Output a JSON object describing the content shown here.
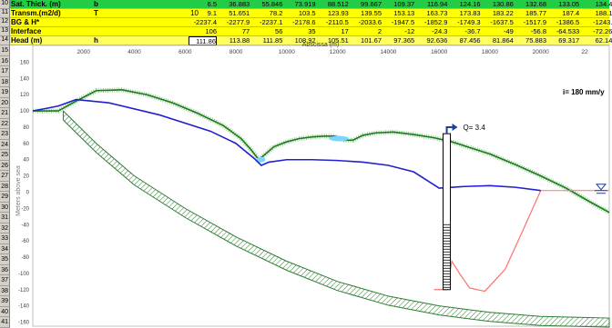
{
  "table": {
    "rows": [
      {
        "row_num": "10",
        "label": "Sat. Thick. (m)",
        "unit": "b",
        "param": "",
        "cells": [
          "6.5",
          "36.883",
          "55.846",
          "73.919",
          "88.512",
          "99.667",
          "109.37",
          "116.94",
          "124.16",
          "130.86",
          "132.68",
          "133.05",
          "134.4"
        ]
      },
      {
        "row_num": "11",
        "label": "Transm.(m2/d)",
        "unit": "T",
        "param": "10",
        "cells": [
          "9.1",
          "51.651",
          "78.2",
          "103.5",
          "123.93",
          "139.55",
          "153.13",
          "163.73",
          "173.83",
          "183.22",
          "185.77",
          "187.4",
          "188.1"
        ]
      },
      {
        "row_num": "12",
        "label": "BG & H*",
        "unit": "",
        "param": "",
        "cells": [
          "-2237.4",
          "-2277.9",
          "-2237.1",
          "-2178.6",
          "-2110.5",
          "-2033.6",
          "-1947.5",
          "-1852.9",
          "-1749.3",
          "-1637.5",
          "-1517.9",
          "-1386.5",
          "-1243."
        ]
      },
      {
        "row_num": "13",
        "label": "Interface",
        "unit": "",
        "param": "",
        "cells": [
          "106",
          "77",
          "56",
          "35",
          "17",
          "2",
          "-12",
          "-24.3",
          "-36.7",
          "-49",
          "-56.8",
          "-64.533",
          "-72.26"
        ]
      },
      {
        "row_num": "14",
        "label": "Head (m)",
        "unit": "h",
        "param": "",
        "cells": [
          "111.86",
          "113.88",
          "111.85",
          "108.92",
          "105.51",
          "101.67",
          "97.365",
          "92.636",
          "87.456",
          "81.864",
          "75.883",
          "69.317",
          "62.14"
        ]
      }
    ],
    "selected_cell": "111.86"
  },
  "plot_row_numbers": [
    "15",
    "16",
    "17",
    "18",
    "19",
    "20",
    "21",
    "22",
    "23",
    "24",
    "25",
    "26",
    "27",
    "28",
    "29",
    "30",
    "31",
    "32",
    "33",
    "34",
    "35",
    "36",
    "37",
    "38",
    "39",
    "40",
    "41"
  ],
  "chart_data": {
    "type": "line",
    "title": "",
    "xlabel": "Abscissa (m)",
    "ylabel": "Meters above sea",
    "x_ticks": [
      2000,
      4000,
      6000,
      8000,
      10000,
      12000,
      14000,
      16000,
      18000,
      20000,
      22
    ],
    "y_ticks": [
      160,
      140,
      120,
      100,
      80,
      60,
      40,
      20,
      0,
      -20,
      -40,
      -60,
      -80,
      -100,
      -120,
      -140,
      -160
    ],
    "ylim": [
      -165,
      165
    ],
    "xlim": [
      0,
      22700
    ],
    "annotations": {
      "recharge": "i= 180 mm/y",
      "pumping": "Q= 3.4"
    },
    "series": [
      {
        "color": "#1f7a1f",
        "x": [
          0,
          1000,
          1700,
          2500,
          3500,
          4500,
          5500,
          6500,
          7500,
          8200,
          8600,
          8900,
          9200,
          9500,
          10000,
          10500,
          11000,
          11500,
          11900,
          12200,
          12600,
          13000,
          13500,
          14200,
          15000,
          15800,
          16500,
          17200,
          18000,
          19000,
          20000,
          21000,
          22000,
          22700
        ],
        "y": [
          100,
          100,
          112,
          125,
          126,
          120,
          110,
          97,
          82,
          66,
          52,
          40,
          48,
          56,
          62,
          66,
          68,
          69,
          69,
          64,
          64,
          70,
          73,
          74,
          71,
          67,
          62,
          55,
          47,
          34,
          20,
          5,
          -13,
          -25
        ]
      },
      {
        "color": "#2020d0",
        "x": [
          0,
          1000,
          1700,
          3000,
          5000,
          7000,
          8000,
          8700,
          9000,
          9300,
          10000,
          11000,
          12000,
          13000,
          14000,
          15000,
          16000,
          17000,
          18000,
          19000,
          20000
        ],
        "y": [
          100,
          106,
          114,
          110,
          95,
          75,
          60,
          42,
          33,
          37,
          40,
          40,
          39,
          37,
          33,
          25,
          5,
          7,
          8,
          6,
          2
        ]
      },
      {
        "color": "#ff7070",
        "x": [
          15800,
          16300,
          16500,
          16800,
          17200,
          17800,
          18600,
          19400,
          20000
        ],
        "y": [
          -120,
          -120,
          -85,
          -100,
          -118,
          -122,
          -95,
          -40,
          2
        ]
      },
      {
        "color": "#ff7070",
        "x": [
          20000,
          22700
        ],
        "y": [
          2,
          2
        ]
      },
      {
        "color": "#1f7a1f",
        "x": [
          1200,
          2500,
          4000,
          6000,
          8000,
          10000,
          12000,
          14000,
          16000,
          18000,
          20000,
          22700
        ],
        "y": [
          100,
          60,
          20,
          -20,
          -55,
          -85,
          -110,
          -128,
          -140,
          -148,
          -153,
          -155
        ]
      }
    ]
  }
}
